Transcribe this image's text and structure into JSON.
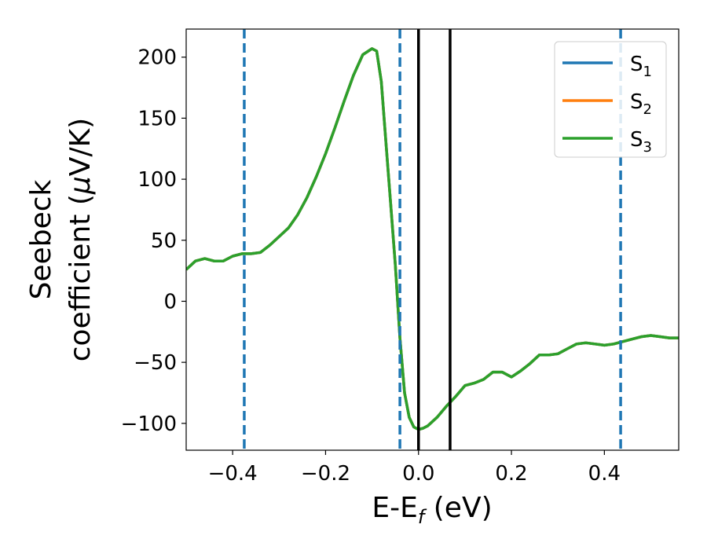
{
  "chart_data": {
    "type": "line",
    "xlabel": "E-E",
    "xlabel_sub": "f",
    "xlabel_unit": " (eV)",
    "ylabel_line1": "Seebeck",
    "ylabel_line2": "coefficient  (",
    "ylabel_mu": "μ",
    "ylabel_unit": "V/K)",
    "xlim": [
      -0.5,
      0.56
    ],
    "ylim": [
      -122,
      223
    ],
    "xticks": [
      -0.4,
      -0.2,
      0.0,
      0.2,
      0.4
    ],
    "xtick_labels": [
      "−0.4",
      "−0.2",
      "0.0",
      "0.2",
      "0.4"
    ],
    "yticks": [
      -100,
      -50,
      0,
      50,
      100,
      150,
      200
    ],
    "ytick_labels": [
      "−100",
      "−50",
      "0",
      "50",
      "100",
      "150",
      "200"
    ],
    "grid": false,
    "legend_position": "top-right",
    "x": [
      -0.5,
      -0.48,
      -0.46,
      -0.44,
      -0.42,
      -0.4,
      -0.38,
      -0.36,
      -0.34,
      -0.32,
      -0.3,
      -0.28,
      -0.26,
      -0.24,
      -0.22,
      -0.2,
      -0.18,
      -0.16,
      -0.14,
      -0.12,
      -0.1,
      -0.09,
      -0.08,
      -0.07,
      -0.06,
      -0.05,
      -0.04,
      -0.03,
      -0.02,
      -0.01,
      0.0,
      0.01,
      0.02,
      0.04,
      0.06,
      0.08,
      0.1,
      0.12,
      0.14,
      0.16,
      0.18,
      0.2,
      0.22,
      0.24,
      0.26,
      0.28,
      0.3,
      0.32,
      0.34,
      0.36,
      0.38,
      0.4,
      0.42,
      0.44,
      0.46,
      0.48,
      0.5,
      0.52,
      0.54,
      0.56
    ],
    "series": [
      {
        "name": "S1",
        "color": "#1f77b4",
        "values": [
          26,
          33,
          35,
          33,
          33,
          37,
          39,
          39,
          40,
          46,
          53,
          60,
          71,
          85,
          102,
          121,
          142,
          164,
          185,
          202,
          207,
          205,
          180,
          130,
          80,
          30,
          -30,
          -75,
          -95,
          -103,
          -105,
          -104,
          -102,
          -95,
          -86,
          -78,
          -69,
          -67,
          -64,
          -58,
          -58,
          -62,
          -57,
          -51,
          -44,
          -44,
          -43,
          -39,
          -35,
          -34,
          -35,
          -36,
          -35,
          -33,
          -31,
          -29,
          -28,
          -29,
          -30,
          -30
        ]
      },
      {
        "name": "S2",
        "color": "#ff7f0e",
        "values": [
          26,
          33,
          35,
          33,
          33,
          37,
          39,
          39,
          40,
          46,
          53,
          60,
          71,
          85,
          102,
          121,
          142,
          164,
          185,
          202,
          207,
          205,
          180,
          130,
          80,
          30,
          -30,
          -75,
          -95,
          -103,
          -105,
          -104,
          -102,
          -95,
          -86,
          -78,
          -69,
          -67,
          -64,
          -58,
          -58,
          -62,
          -57,
          -51,
          -44,
          -44,
          -43,
          -39,
          -35,
          -34,
          -35,
          -36,
          -35,
          -33,
          -31,
          -29,
          -28,
          -29,
          -30,
          -30
        ]
      },
      {
        "name": "S3",
        "color": "#2ca02c",
        "values": [
          26,
          33,
          35,
          33,
          33,
          37,
          39,
          39,
          40,
          46,
          53,
          60,
          71,
          85,
          102,
          121,
          142,
          164,
          185,
          202,
          207,
          205,
          180,
          130,
          80,
          30,
          -30,
          -75,
          -95,
          -103,
          -105,
          -104,
          -102,
          -95,
          -86,
          -78,
          -69,
          -67,
          -64,
          -58,
          -58,
          -62,
          -57,
          -51,
          -44,
          -44,
          -43,
          -39,
          -35,
          -34,
          -35,
          -36,
          -35,
          -33,
          -31,
          -29,
          -28,
          -29,
          -30,
          -30
        ]
      }
    ],
    "vlines_dashed": {
      "color": "#1f77b4",
      "x": [
        -0.375,
        -0.04,
        0.435
      ]
    },
    "vlines_solid": {
      "color": "#000000",
      "x": [
        0.0,
        0.068
      ]
    },
    "legend": [
      {
        "label": "S",
        "sub": "1",
        "color": "#1f77b4"
      },
      {
        "label": "S",
        "sub": "2",
        "color": "#ff7f0e"
      },
      {
        "label": "S",
        "sub": "3",
        "color": "#2ca02c"
      }
    ]
  }
}
